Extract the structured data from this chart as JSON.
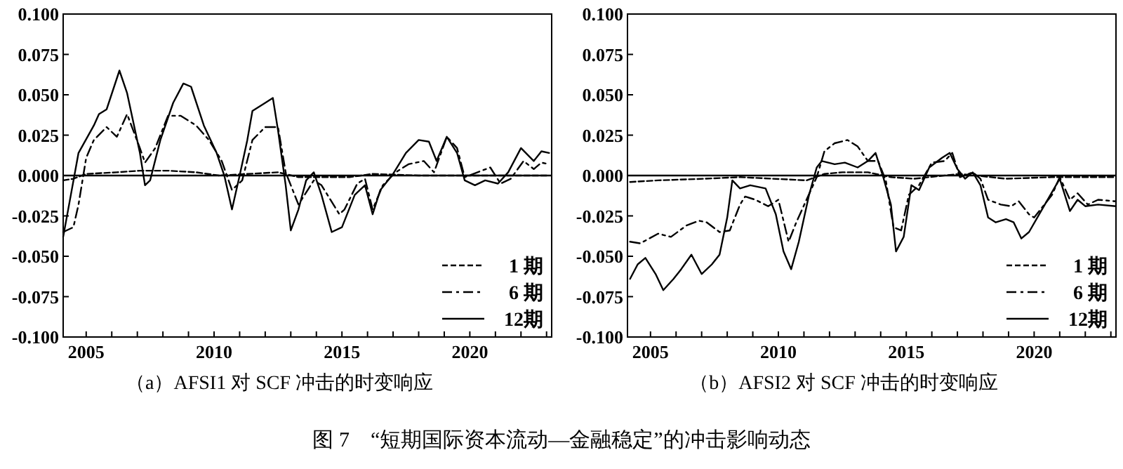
{
  "chart_data": [
    {
      "type": "line",
      "title": "（a）AFSI1 对 SCF 冲击的时变响应",
      "annotations": [
        "图 7　“短期国际资本流动—金融稳定”的冲击影响动态"
      ],
      "legend": "bottom right",
      "xlim": [
        2004.1,
        2023.2
      ],
      "ylim": [
        -0.1,
        0.1
      ],
      "xticks": [
        {
          "value": 2005,
          "label": "2005"
        },
        {
          "value": 2006,
          "label": null
        },
        {
          "value": 2007,
          "label": null
        },
        {
          "value": 2008,
          "label": null
        },
        {
          "value": 2009,
          "label": null
        },
        {
          "value": 2010,
          "label": "2010"
        },
        {
          "value": 2011,
          "label": null
        },
        {
          "value": 2012,
          "label": null
        },
        {
          "value": 2013,
          "label": null
        },
        {
          "value": 2014,
          "label": null
        },
        {
          "value": 2015,
          "label": "2015"
        },
        {
          "value": 2016,
          "label": null
        },
        {
          "value": 2017,
          "label": null
        },
        {
          "value": 2018,
          "label": null
        },
        {
          "value": 2019,
          "label": null
        },
        {
          "value": 2020,
          "label": "2020"
        },
        {
          "value": 2021,
          "label": null
        },
        {
          "value": 2022,
          "label": null
        },
        {
          "value": 2023,
          "label": null
        }
      ],
      "yticks": [
        {
          "value": -0.1,
          "label": "-0.100"
        },
        {
          "value": -0.075,
          "label": "-0.075"
        },
        {
          "value": -0.05,
          "label": "-0.050"
        },
        {
          "value": -0.025,
          "label": "-0.025"
        },
        {
          "value": 0,
          "label": "0.000"
        },
        {
          "value": 0.025,
          "label": "0.025"
        },
        {
          "value": 0.05,
          "label": "0.050"
        },
        {
          "value": 0.075,
          "label": "0.075"
        },
        {
          "value": 0.1,
          "label": "0.100"
        }
      ],
      "ref_lines": [
        {
          "axis": "y",
          "value": 0,
          "color": "#000000"
        }
      ],
      "series": [
        {
          "name": "1 期",
          "color": "#000000",
          "line_style": "dashed",
          "x": [
            2004.1,
            2004.5,
            2005.0,
            2006.2,
            2007.1,
            2008.2,
            2009.3,
            2010.2,
            2012.5,
            2013.3,
            2015.3,
            2016.2,
            2018.0,
            2023.1
          ],
          "values": [
            -0.003,
            -0.002,
            0.001,
            0.002,
            0.003,
            0.003,
            0.002,
            0,
            0.002,
            -0.001,
            -0.001,
            0.001,
            0,
            0
          ]
        },
        {
          "name": "6 期",
          "color": "#000000",
          "line_style": "dashdot",
          "x": [
            2004.1,
            2004.5,
            2004.7,
            2005.0,
            2005.3,
            2005.8,
            2006.2,
            2006.6,
            2007.1,
            2007.3,
            2007.7,
            2008.2,
            2008.7,
            2009.3,
            2009.8,
            2010.3,
            2010.7,
            2011.1,
            2011.5,
            2012.0,
            2012.5,
            2012.8,
            2013.3,
            2013.9,
            2014.2,
            2014.9,
            2015.1,
            2015.6,
            2015.9,
            2016.2,
            2016.6,
            2017.1,
            2017.6,
            2018.2,
            2018.6,
            2019.1,
            2019.5,
            2019.8,
            2020.8,
            2021.2,
            2021.6,
            2022.1,
            2022.5,
            2022.8,
            2023.1
          ],
          "values": [
            -0.035,
            -0.032,
            -0.018,
            0.011,
            0.022,
            0.03,
            0.024,
            0.038,
            0.017,
            0.008,
            0.017,
            0.037,
            0.037,
            0.031,
            0.022,
            0.009,
            -0.009,
            -0.003,
            0.022,
            0.03,
            0.03,
            0.002,
            -0.018,
            -0.003,
            -0.006,
            -0.024,
            -0.021,
            -0.005,
            -0.002,
            -0.021,
            -0.006,
            0.002,
            0.007,
            0.009,
            0.002,
            0.024,
            0.017,
            -0.001,
            0.005,
            -0.005,
            -0.002,
            0.009,
            0.004,
            0.008,
            0.007
          ]
        },
        {
          "name": "12期",
          "color": "#000000",
          "line_style": "solid",
          "x": [
            2004.1,
            2004.4,
            2004.7,
            2005.3,
            2005.5,
            2005.8,
            2006.3,
            2006.6,
            2007.1,
            2007.3,
            2007.5,
            2007.9,
            2008.4,
            2008.8,
            2009.1,
            2009.6,
            2010.1,
            2010.4,
            2010.7,
            2011.0,
            2011.3,
            2011.5,
            2012.0,
            2012.3,
            2012.5,
            2012.8,
            2013.0,
            2013.3,
            2013.6,
            2013.9,
            2014.2,
            2014.6,
            2015.0,
            2015.5,
            2015.9,
            2016.2,
            2016.5,
            2017.0,
            2017.5,
            2018.0,
            2018.4,
            2018.7,
            2019.1,
            2019.5,
            2019.8,
            2020.2,
            2020.6,
            2021.1,
            2021.5,
            2022.0,
            2022.5,
            2022.8,
            2023.1
          ],
          "values": [
            -0.038,
            -0.012,
            0.014,
            0.031,
            0.038,
            0.041,
            0.065,
            0.051,
            0.014,
            -0.006,
            -0.003,
            0.022,
            0.045,
            0.057,
            0.055,
            0.031,
            0.014,
            0,
            -0.021,
            0,
            0.022,
            0.04,
            0.045,
            0.048,
            0.028,
            -0.006,
            -0.034,
            -0.021,
            -0.003,
            0.002,
            -0.012,
            -0.035,
            -0.032,
            -0.012,
            -0.006,
            -0.024,
            -0.009,
            0.001,
            0.014,
            0.022,
            0.021,
            0.009,
            0.024,
            0.014,
            -0.003,
            -0.006,
            -0.003,
            -0.005,
            0.002,
            0.017,
            0.009,
            0.015,
            0.014
          ]
        }
      ]
    },
    {
      "type": "line",
      "title": "（b）AFSI2 对 SCF 冲击的时变响应",
      "legend": "bottom right",
      "xlim": [
        2004.1,
        2023.2
      ],
      "ylim": [
        -0.1,
        0.1
      ],
      "xticks": [
        {
          "value": 2005,
          "label": "2005"
        },
        {
          "value": 2006,
          "label": null
        },
        {
          "value": 2007,
          "label": null
        },
        {
          "value": 2008,
          "label": null
        },
        {
          "value": 2009,
          "label": null
        },
        {
          "value": 2010,
          "label": "2010"
        },
        {
          "value": 2011,
          "label": null
        },
        {
          "value": 2012,
          "label": null
        },
        {
          "value": 2013,
          "label": null
        },
        {
          "value": 2014,
          "label": null
        },
        {
          "value": 2015,
          "label": "2015"
        },
        {
          "value": 2016,
          "label": null
        },
        {
          "value": 2017,
          "label": null
        },
        {
          "value": 2018,
          "label": null
        },
        {
          "value": 2019,
          "label": null
        },
        {
          "value": 2020,
          "label": "2020"
        },
        {
          "value": 2021,
          "label": null
        },
        {
          "value": 2022,
          "label": null
        },
        {
          "value": 2023,
          "label": null
        }
      ],
      "yticks": [
        {
          "value": -0.1,
          "label": "-0.100"
        },
        {
          "value": -0.075,
          "label": "-0.075"
        },
        {
          "value": -0.05,
          "label": "-0.050"
        },
        {
          "value": -0.025,
          "label": "-0.025"
        },
        {
          "value": 0,
          "label": "0.000"
        },
        {
          "value": 0.025,
          "label": "0.025"
        },
        {
          "value": 0.05,
          "label": "0.050"
        },
        {
          "value": 0.075,
          "label": "0.075"
        },
        {
          "value": 0.1,
          "label": "0.100"
        }
      ],
      "ref_lines": [
        {
          "axis": "y",
          "value": 0,
          "color": "#000000"
        }
      ],
      "series": [
        {
          "name": "1 期",
          "color": "#000000",
          "line_style": "dashed",
          "x": [
            2004.2,
            2005.3,
            2007.1,
            2008.5,
            2009.8,
            2011.1,
            2011.8,
            2012.5,
            2013.5,
            2014.4,
            2015.3,
            2017.1,
            2018.9,
            2020.7,
            2023.2
          ],
          "values": [
            -0.004,
            -0.003,
            -0.002,
            -0.001,
            -0.002,
            -0.003,
            0.001,
            0.002,
            0.002,
            -0.001,
            -0.002,
            0.001,
            -0.002,
            -0.001,
            -0.001
          ]
        },
        {
          "name": "6 期",
          "color": "#000000",
          "line_style": "dashdot",
          "x": [
            2004.2,
            2004.6,
            2005.3,
            2005.8,
            2006.4,
            2006.9,
            2007.2,
            2007.7,
            2008.1,
            2008.5,
            2008.7,
            2009.1,
            2009.6,
            2010.0,
            2010.4,
            2010.7,
            2011.1,
            2011.5,
            2011.8,
            2012.2,
            2012.7,
            2013.1,
            2013.5,
            2013.9,
            2014.2,
            2014.5,
            2014.8,
            2015.1,
            2015.5,
            2016.0,
            2016.5,
            2016.8,
            2017.1,
            2017.6,
            2017.9,
            2018.2,
            2018.7,
            2019.1,
            2019.4,
            2019.8,
            2020.0,
            2020.4,
            2020.7,
            2021.0,
            2021.4,
            2021.7,
            2022.1,
            2022.5,
            2023.2
          ],
          "values": [
            -0.041,
            -0.042,
            -0.036,
            -0.038,
            -0.031,
            -0.028,
            -0.029,
            -0.035,
            -0.034,
            -0.018,
            -0.013,
            -0.015,
            -0.019,
            -0.015,
            -0.041,
            -0.029,
            -0.015,
            -0.001,
            0.015,
            0.02,
            0.022,
            0.018,
            0.009,
            0.009,
            -0.003,
            -0.032,
            -0.034,
            -0.012,
            -0.006,
            0.008,
            0.009,
            0.014,
            -0.001,
            0.002,
            -0.002,
            -0.015,
            -0.018,
            -0.019,
            -0.016,
            -0.024,
            -0.026,
            -0.018,
            -0.012,
            -0.001,
            -0.015,
            -0.011,
            -0.018,
            -0.015,
            -0.016
          ]
        },
        {
          "name": "12期",
          "color": "#000000",
          "line_style": "solid",
          "x": [
            2004.2,
            2004.5,
            2004.8,
            2005.2,
            2005.5,
            2005.9,
            2006.2,
            2006.6,
            2007.0,
            2007.4,
            2007.7,
            2008.0,
            2008.2,
            2008.5,
            2008.9,
            2009.5,
            2009.9,
            2010.2,
            2010.5,
            2010.8,
            2011.2,
            2011.5,
            2011.7,
            2012.2,
            2012.6,
            2013.1,
            2013.5,
            2013.8,
            2014.1,
            2014.4,
            2014.6,
            2014.9,
            2015.2,
            2015.5,
            2015.9,
            2016.4,
            2016.7,
            2017.0,
            2017.3,
            2017.6,
            2017.9,
            2018.2,
            2018.5,
            2018.9,
            2019.2,
            2019.5,
            2019.8,
            2020.2,
            2020.6,
            2021.0,
            2021.4,
            2021.7,
            2022.0,
            2022.5,
            2023.2
          ],
          "values": [
            -0.064,
            -0.055,
            -0.051,
            -0.061,
            -0.071,
            -0.064,
            -0.058,
            -0.049,
            -0.061,
            -0.055,
            -0.049,
            -0.026,
            -0.003,
            -0.008,
            -0.006,
            -0.008,
            -0.024,
            -0.047,
            -0.058,
            -0.041,
            -0.012,
            0.005,
            0.009,
            0.007,
            0.008,
            0.005,
            0.009,
            0.014,
            -0.001,
            -0.018,
            -0.047,
            -0.038,
            -0.006,
            -0.009,
            0.005,
            0.011,
            0.014,
            0.004,
            -0.002,
            0.002,
            -0.006,
            -0.026,
            -0.029,
            -0.027,
            -0.029,
            -0.039,
            -0.035,
            -0.024,
            -0.013,
            -0.002,
            -0.022,
            -0.015,
            -0.019,
            -0.018,
            -0.019
          ]
        }
      ]
    }
  ]
}
